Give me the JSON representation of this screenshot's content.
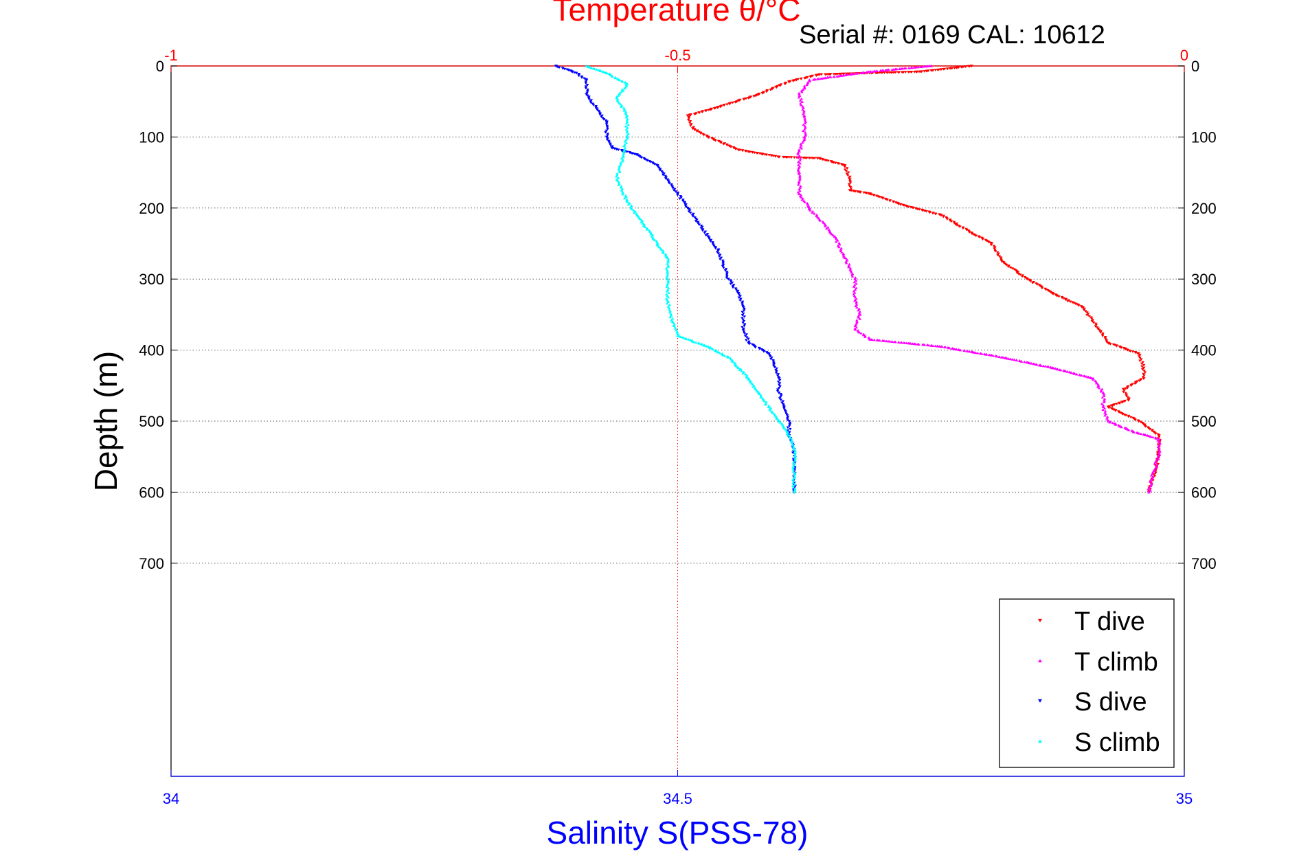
{
  "chart_data": {
    "type": "scatter",
    "title": "Temperature θ/°C",
    "subtitle": "Serial #: 0169 CAL: 10612",
    "xlabel": "Salinity S(PSS-78)",
    "ylabel": "Depth (m)",
    "salinity_axis": {
      "range": [
        34,
        35
      ],
      "ticks": [
        "34",
        "34.5",
        "35"
      ]
    },
    "temperature_axis": {
      "range": [
        -1,
        0
      ],
      "ticks": [
        "-1",
        "-0.5",
        "0"
      ]
    },
    "depth_axis": {
      "range": [
        0,
        1000
      ],
      "reversed": true,
      "ticks": [
        "0",
        "100",
        "200",
        "300",
        "400",
        "500",
        "600",
        "700"
      ]
    },
    "grid": true,
    "legend_position": "bottom-right",
    "series": [
      {
        "name": "T dive",
        "variable": "temperature",
        "marker": "triangle-down",
        "color": "#ff0000",
        "points": [
          [
            -0.21,
            0
          ],
          [
            -0.26,
            8
          ],
          [
            -0.36,
            12
          ],
          [
            -0.39,
            22
          ],
          [
            -0.42,
            40
          ],
          [
            -0.46,
            58
          ],
          [
            -0.49,
            70
          ],
          [
            -0.485,
            88
          ],
          [
            -0.47,
            100
          ],
          [
            -0.44,
            118
          ],
          [
            -0.4,
            128
          ],
          [
            -0.36,
            130
          ],
          [
            -0.335,
            140
          ],
          [
            -0.33,
            160
          ],
          [
            -0.33,
            175
          ],
          [
            -0.31,
            180
          ],
          [
            -0.28,
            195
          ],
          [
            -0.24,
            210
          ],
          [
            -0.21,
            235
          ],
          [
            -0.19,
            250
          ],
          [
            -0.18,
            275
          ],
          [
            -0.155,
            300
          ],
          [
            -0.13,
            320
          ],
          [
            -0.1,
            340
          ],
          [
            -0.085,
            370
          ],
          [
            -0.075,
            390
          ],
          [
            -0.045,
            405
          ],
          [
            -0.04,
            425
          ],
          [
            -0.04,
            440
          ],
          [
            -0.06,
            455
          ],
          [
            -0.055,
            470
          ],
          [
            -0.075,
            480
          ],
          [
            -0.045,
            500
          ],
          [
            -0.025,
            520
          ],
          [
            -0.025,
            550
          ],
          [
            -0.03,
            575
          ],
          [
            -0.035,
            600
          ]
        ]
      },
      {
        "name": "T climb",
        "variable": "temperature",
        "marker": "triangle-up",
        "color": "#ff00ff",
        "points": [
          [
            -0.25,
            0
          ],
          [
            -0.31,
            8
          ],
          [
            -0.37,
            20
          ],
          [
            -0.38,
            40
          ],
          [
            -0.375,
            70
          ],
          [
            -0.375,
            100
          ],
          [
            -0.38,
            120
          ],
          [
            -0.38,
            150
          ],
          [
            -0.38,
            180
          ],
          [
            -0.37,
            200
          ],
          [
            -0.345,
            240
          ],
          [
            -0.335,
            270
          ],
          [
            -0.325,
            300
          ],
          [
            -0.325,
            330
          ],
          [
            -0.32,
            350
          ],
          [
            -0.325,
            370
          ],
          [
            -0.31,
            385
          ],
          [
            -0.24,
            395
          ],
          [
            -0.18,
            410
          ],
          [
            -0.13,
            425
          ],
          [
            -0.09,
            440
          ],
          [
            -0.08,
            460
          ],
          [
            -0.08,
            480
          ],
          [
            -0.075,
            500
          ],
          [
            -0.05,
            515
          ],
          [
            -0.025,
            525
          ],
          [
            -0.025,
            545
          ],
          [
            -0.03,
            570
          ],
          [
            -0.035,
            600
          ]
        ]
      },
      {
        "name": "S dive",
        "variable": "salinity",
        "marker": "triangle-down",
        "color": "#0000ff",
        "points": [
          [
            34.38,
            0
          ],
          [
            34.4,
            10
          ],
          [
            34.41,
            20
          ],
          [
            34.41,
            40
          ],
          [
            34.42,
            60
          ],
          [
            34.43,
            80
          ],
          [
            34.43,
            100
          ],
          [
            34.435,
            115
          ],
          [
            34.46,
            125
          ],
          [
            34.48,
            140
          ],
          [
            34.49,
            160
          ],
          [
            34.5,
            180
          ],
          [
            34.51,
            200
          ],
          [
            34.52,
            220
          ],
          [
            34.53,
            240
          ],
          [
            34.54,
            260
          ],
          [
            34.545,
            280
          ],
          [
            34.55,
            300
          ],
          [
            34.56,
            320
          ],
          [
            34.565,
            340
          ],
          [
            34.565,
            370
          ],
          [
            34.57,
            390
          ],
          [
            34.59,
            405
          ],
          [
            34.595,
            420
          ],
          [
            34.6,
            440
          ],
          [
            34.6,
            460
          ],
          [
            34.605,
            480
          ],
          [
            34.61,
            500
          ],
          [
            34.61,
            520
          ],
          [
            34.615,
            540
          ],
          [
            34.615,
            560
          ],
          [
            34.615,
            580
          ],
          [
            34.615,
            600
          ]
        ]
      },
      {
        "name": "S climb",
        "variable": "salinity",
        "marker": "triangle-up",
        "color": "#00ffff",
        "points": [
          [
            34.41,
            0
          ],
          [
            34.43,
            10
          ],
          [
            34.45,
            25
          ],
          [
            34.44,
            45
          ],
          [
            34.45,
            70
          ],
          [
            34.45,
            100
          ],
          [
            34.445,
            130
          ],
          [
            34.44,
            160
          ],
          [
            34.45,
            190
          ],
          [
            34.46,
            210
          ],
          [
            34.47,
            230
          ],
          [
            34.48,
            250
          ],
          [
            34.49,
            270
          ],
          [
            34.49,
            300
          ],
          [
            34.49,
            330
          ],
          [
            34.495,
            360
          ],
          [
            34.5,
            380
          ],
          [
            34.53,
            395
          ],
          [
            34.55,
            410
          ],
          [
            34.56,
            425
          ],
          [
            34.57,
            440
          ],
          [
            34.58,
            460
          ],
          [
            34.59,
            480
          ],
          [
            34.6,
            500
          ],
          [
            34.61,
            520
          ],
          [
            34.615,
            540
          ],
          [
            34.615,
            560
          ],
          [
            34.615,
            580
          ],
          [
            34.615,
            600
          ]
        ]
      }
    ]
  }
}
